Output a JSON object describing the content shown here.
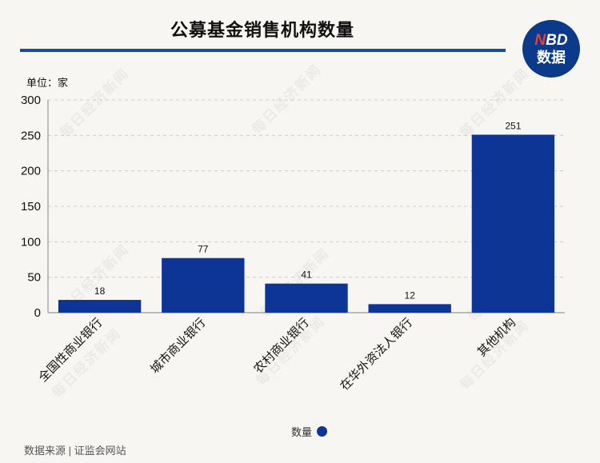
{
  "title": "公募基金销售机构数量",
  "logo": {
    "top": "NBD",
    "bottom": "数据"
  },
  "unit_label": "单位：家",
  "source": "数据来源 | 证监会网站",
  "watermark_text": "每日经济新闻",
  "colors": {
    "bar": "#0d3596",
    "title_rule": "#1c4b9e",
    "logo_bg": "#0b3a8b",
    "logo_accent": "#e8413c",
    "background": "#f8f6f3"
  },
  "chart_data": {
    "type": "bar",
    "categories": [
      "全国性商业银行",
      "城市商业银行",
      "农村商业银行",
      "在华外资法人银行",
      "其他机构"
    ],
    "series": [
      {
        "name": "数量",
        "values": [
          18,
          77,
          41,
          12,
          251
        ]
      }
    ],
    "yticks": [
      0,
      50,
      100,
      150,
      200,
      250,
      300
    ],
    "ylim": [
      0,
      300
    ],
    "ylabel": "单位：家",
    "grid": true,
    "legend": "bottom-center",
    "data_labels": true
  }
}
